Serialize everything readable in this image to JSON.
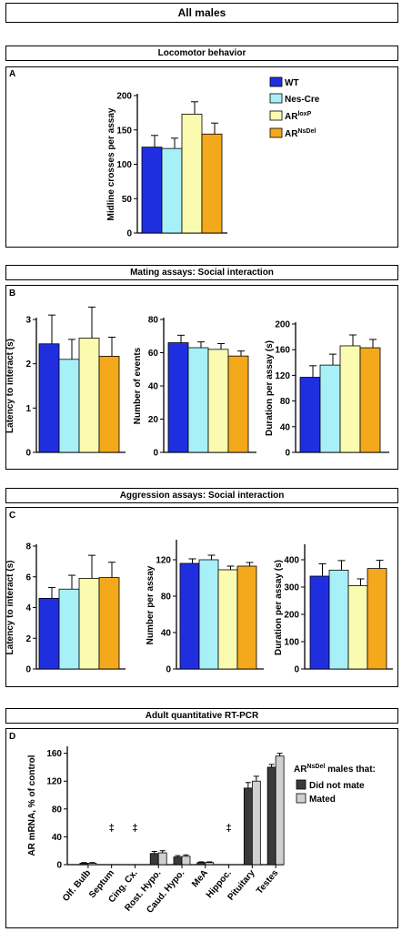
{
  "main_title": "All males",
  "series_names": [
    "WT",
    "Nes-Cre",
    "AR",
    "AR"
  ],
  "legend_sup": [
    "",
    "",
    "loxP",
    "NsDel"
  ],
  "colors": {
    "WT": "#1f2fe0",
    "NesCre": "#a8f0f8",
    "ARloxP": "#fafbb0",
    "ARNsDel": "#f4a81c",
    "did_not_mate": "#3a3a3a",
    "mated": "#d0d0d0"
  },
  "sections": {
    "locomotor": {
      "title": "Locomotor behavior",
      "letter": "A"
    },
    "mating": {
      "title": "Mating assays: Social interaction",
      "letter": "B"
    },
    "aggression": {
      "title": "Aggression assays: Social interaction",
      "letter": "C"
    },
    "rtpcr": {
      "title": "Adult quantitative RT-PCR",
      "letter": "D"
    }
  },
  "rtpcr_legend": {
    "title_prefix": "AR",
    "title_sup": "NsDel",
    "title_suffix": " males that:",
    "items": [
      "Did not mate",
      "Mated"
    ]
  },
  "chart_data": [
    {
      "id": "A",
      "type": "bar",
      "ylabel": "Midline crosses per assay",
      "ylim": [
        0,
        200
      ],
      "ticks": [
        "0",
        "50",
        "100",
        "150",
        "200"
      ],
      "series": [
        {
          "name": "WT",
          "values": [
            125
          ],
          "error": [
            17
          ]
        },
        {
          "name": "Nes-Cre",
          "values": [
            123
          ],
          "error": [
            15
          ]
        },
        {
          "name": "ARloxP",
          "values": [
            173
          ],
          "error": [
            18
          ]
        },
        {
          "name": "ARNsDel",
          "values": [
            144
          ],
          "error": [
            16
          ]
        }
      ]
    },
    {
      "id": "B1",
      "type": "bar",
      "ylabel": "Latency to interact (s)",
      "ylim": [
        0,
        3
      ],
      "ticks": [
        "0",
        "1",
        "2",
        "3"
      ],
      "series": [
        {
          "name": "WT",
          "values": [
            2.45
          ],
          "error": [
            0.65
          ]
        },
        {
          "name": "Nes-Cre",
          "values": [
            2.1
          ],
          "error": [
            0.45
          ]
        },
        {
          "name": "ARloxP",
          "values": [
            2.58
          ],
          "error": [
            0.7
          ]
        },
        {
          "name": "ARNsDel",
          "values": [
            2.17
          ],
          "error": [
            0.43
          ]
        }
      ]
    },
    {
      "id": "B2",
      "type": "bar",
      "ylabel": "Number of events",
      "ylim": [
        0,
        80
      ],
      "ticks": [
        "0",
        "20",
        "40",
        "60",
        "80"
      ],
      "series": [
        {
          "name": "WT",
          "values": [
            66
          ],
          "error": [
            4.5
          ]
        },
        {
          "name": "Nes-Cre",
          "values": [
            63
          ],
          "error": [
            3.5
          ]
        },
        {
          "name": "ARloxP",
          "values": [
            62
          ],
          "error": [
            3.5
          ]
        },
        {
          "name": "ARNsDel",
          "values": [
            58
          ],
          "error": [
            3
          ]
        }
      ]
    },
    {
      "id": "B3",
      "type": "bar",
      "ylabel": "Duration per assay (s)",
      "ylim": [
        0,
        200
      ],
      "ticks": [
        "0",
        "40",
        "80",
        "120",
        "160",
        "200"
      ],
      "series": [
        {
          "name": "WT",
          "values": [
            117
          ],
          "error": [
            18
          ]
        },
        {
          "name": "Nes-Cre",
          "values": [
            136
          ],
          "error": [
            17
          ]
        },
        {
          "name": "ARloxP",
          "values": [
            166
          ],
          "error": [
            17
          ]
        },
        {
          "name": "ARNsDel",
          "values": [
            163
          ],
          "error": [
            13
          ]
        }
      ]
    },
    {
      "id": "C1",
      "type": "bar",
      "ylabel": "Latency to interact (s)",
      "ylim": [
        0,
        8
      ],
      "ticks": [
        "0",
        "2",
        "4",
        "6",
        "8"
      ],
      "series": [
        {
          "name": "WT",
          "values": [
            4.6
          ],
          "error": [
            0.7
          ]
        },
        {
          "name": "Nes-Cre",
          "values": [
            5.2
          ],
          "error": [
            0.9
          ]
        },
        {
          "name": "ARloxP",
          "values": [
            5.9
          ],
          "error": [
            1.5
          ]
        },
        {
          "name": "ARNsDel",
          "values": [
            5.95
          ],
          "error": [
            1.0
          ]
        }
      ]
    },
    {
      "id": "C2",
      "type": "bar",
      "ylabel": "Number per assay",
      "ylim": [
        0,
        140
      ],
      "ticks": [
        "0",
        "40",
        "80",
        "120"
      ],
      "series": [
        {
          "name": "WT",
          "values": [
            116
          ],
          "error": [
            5
          ]
        },
        {
          "name": "Nes-Cre",
          "values": [
            120
          ],
          "error": [
            5
          ]
        },
        {
          "name": "ARloxP",
          "values": [
            109
          ],
          "error": [
            4
          ]
        },
        {
          "name": "ARNsDel",
          "values": [
            113
          ],
          "error": [
            4
          ]
        }
      ]
    },
    {
      "id": "C3",
      "type": "bar",
      "ylabel": "Duration per assay (s)",
      "ylim": [
        0,
        450
      ],
      "ticks": [
        "0",
        "100",
        "200",
        "300",
        "400"
      ],
      "series": [
        {
          "name": "WT",
          "values": [
            340
          ],
          "error": [
            45
          ]
        },
        {
          "name": "Nes-Cre",
          "values": [
            362
          ],
          "error": [
            35
          ]
        },
        {
          "name": "ARloxP",
          "values": [
            305
          ],
          "error": [
            25
          ]
        },
        {
          "name": "ARNsDel",
          "values": [
            368
          ],
          "error": [
            30
          ]
        }
      ]
    },
    {
      "id": "D",
      "type": "bar",
      "ylabel": "AR mRNA, % of control",
      "ylim": [
        0,
        170
      ],
      "ticks": [
        "0",
        "40",
        "80",
        "120",
        "160"
      ],
      "categories": [
        "Olf. Bulb",
        "Septum",
        "Cing. Cx.",
        "Rost. Hypo.",
        "Caud. Hypo.",
        "MeA",
        "Hippoc.",
        "Pituitary",
        "Testes"
      ],
      "series": [
        {
          "name": "Did not mate",
          "values": [
            2,
            0,
            0,
            16,
            11,
            3,
            0,
            110,
            140
          ],
          "error": [
            1,
            0,
            0,
            3,
            2,
            1,
            0,
            8,
            4
          ]
        },
        {
          "name": "Mated",
          "values": [
            2,
            0,
            0,
            17,
            12,
            3,
            0,
            120,
            156
          ],
          "error": [
            1,
            0,
            0,
            3,
            2,
            1,
            0,
            7,
            4
          ]
        }
      ],
      "markers": [
        "",
        "‡",
        "‡",
        "",
        "",
        "",
        "‡",
        "",
        ""
      ]
    }
  ]
}
